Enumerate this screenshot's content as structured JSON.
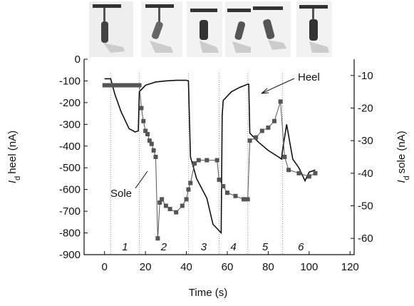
{
  "chart_data": {
    "type": "line",
    "x_label": "Time (s)",
    "y_label": {
      "symbol": "I",
      "subscript": "d",
      "text": "heel (nA)"
    },
    "y2_label": {
      "symbol": "I",
      "subscript": "d",
      "text": "sole (nA)"
    },
    "xlim": [
      -10,
      122
    ],
    "xticks": [
      0,
      20,
      40,
      60,
      80,
      100,
      120
    ],
    "ylim": [
      -900,
      0
    ],
    "yticks": [
      0,
      -100,
      -200,
      -300,
      -400,
      -500,
      -600,
      -700,
      -800,
      -900
    ],
    "y2lim": [
      -65,
      -5
    ],
    "y2ticks": [
      -10,
      -20,
      -30,
      -40,
      -50,
      -60
    ],
    "phase_boundaries": [
      3,
      17,
      41,
      56,
      70,
      87
    ],
    "phases": [
      "1",
      "2",
      "3",
      "4",
      "5",
      "6"
    ],
    "annotations": [
      "Heel",
      "Sole"
    ],
    "series": [
      {
        "name": "Heel",
        "color": "#111111",
        "x": [
          0,
          3,
          5,
          8,
          12,
          15,
          16.5,
          17,
          20,
          25,
          30,
          35,
          40,
          41,
          42,
          45,
          50,
          53,
          56,
          57,
          57.5,
          58,
          62,
          66,
          70,
          70.5,
          71,
          75,
          80,
          85,
          86.5,
          87,
          89,
          92,
          95,
          98,
          100,
          103
        ],
        "values": [
          -90,
          -90,
          -160,
          -240,
          -320,
          -335,
          -330,
          -150,
          -120,
          -105,
          -100,
          -97,
          -97,
          -100,
          -450,
          -550,
          -640,
          -760,
          -790,
          -800,
          -260,
          -190,
          -150,
          -130,
          -115,
          -115,
          -340,
          -380,
          -420,
          -450,
          -460,
          -420,
          -300,
          -460,
          -500,
          -560,
          -520,
          -510
        ]
      },
      {
        "name": "Sole",
        "color": "#555555",
        "axis": "y2",
        "x": [
          0,
          2,
          4,
          6,
          8,
          10,
          12,
          14,
          16,
          17,
          18,
          19,
          20,
          21,
          22,
          23,
          24,
          25,
          26,
          27,
          28,
          30,
          32,
          35,
          38,
          40,
          41,
          42,
          44,
          46,
          50,
          55,
          56,
          58,
          60,
          64,
          68,
          70,
          71,
          74,
          77,
          80,
          83,
          86,
          88,
          90,
          95,
          100,
          103
        ],
        "values": [
          -13,
          -13,
          -13,
          -13,
          -13,
          -13,
          -13,
          -13,
          -13,
          -13,
          -20,
          -24,
          -27,
          -28,
          -30,
          -31,
          -33,
          -35,
          -60,
          -49,
          -48,
          -50,
          -51,
          -52,
          -50,
          -48,
          -45,
          -43,
          -37,
          -36,
          -36,
          -36,
          -42,
          -44,
          -46,
          -47,
          -48,
          -48,
          -30,
          -29,
          -27,
          -26,
          -24,
          -18,
          -35,
          -39,
          -40,
          -41,
          -40
        ]
      }
    ]
  }
}
